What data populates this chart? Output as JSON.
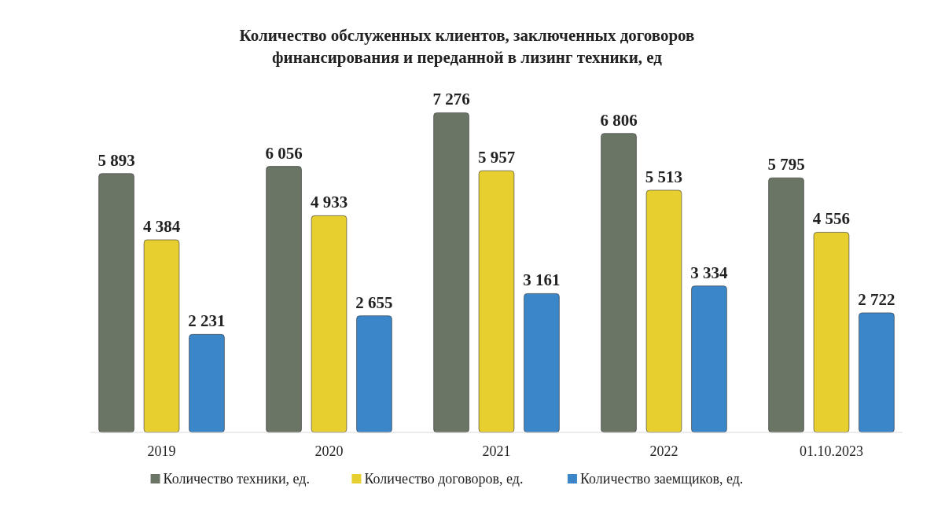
{
  "chart_data": {
    "type": "bar",
    "title": "Количество обслуженных клиентов, заключенных договоров\nфинансирования и переданной в лизинг техники, ед",
    "categories": [
      "2019",
      "2020",
      "2021",
      "2022",
      "01.10.2023"
    ],
    "series": [
      {
        "name": "Количество техники, ед.",
        "color": "#6b7566",
        "values": [
          5893,
          6056,
          7276,
          6806,
          5795
        ]
      },
      {
        "name": "Количество договоров, ед.",
        "color": "#e6cf2e",
        "values": [
          4384,
          4933,
          5957,
          5513,
          4556
        ]
      },
      {
        "name": "Количество заемщиков, ед.",
        "color": "#3b86c9",
        "values": [
          2231,
          2655,
          3161,
          3334,
          2722
        ]
      }
    ],
    "data_labels": true,
    "legend": "bottom"
  }
}
